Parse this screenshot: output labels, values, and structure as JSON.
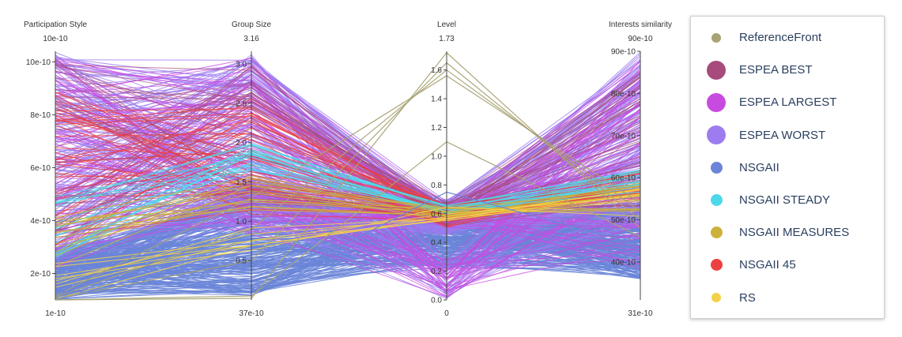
{
  "chart_data": {
    "type": "parallel-coordinates",
    "axes": [
      {
        "title": "Participation Style",
        "top_label": "10e-10",
        "bottom_label": "1e-10",
        "range": [
          1,
          10.4
        ],
        "ticks": [
          {
            "v": 2,
            "label": "2e-10"
          },
          {
            "v": 4,
            "label": "4e-10"
          },
          {
            "v": 6,
            "label": "6e-10"
          },
          {
            "v": 8,
            "label": "8e-10"
          },
          {
            "v": 10,
            "label": "10e-10"
          }
        ]
      },
      {
        "title": "Group Size",
        "top_label": "3.16",
        "bottom_label": "37e-10",
        "range": [
          0.0,
          3.16
        ],
        "ticks": [
          {
            "v": 0.5,
            "label": "0.5"
          },
          {
            "v": 1.0,
            "label": "1.0"
          },
          {
            "v": 1.5,
            "label": "1.5"
          },
          {
            "v": 2.0,
            "label": "2.0"
          },
          {
            "v": 2.5,
            "label": "2.5"
          },
          {
            "v": 3.0,
            "label": "3.0"
          }
        ]
      },
      {
        "title": "Level",
        "top_label": "1.73",
        "bottom_label": "0",
        "range": [
          0,
          1.73
        ],
        "ticks": [
          {
            "v": 0.0,
            "label": "0.0"
          },
          {
            "v": 0.2,
            "label": "0.2"
          },
          {
            "v": 0.4,
            "label": "0.4"
          },
          {
            "v": 0.6,
            "label": "0.6"
          },
          {
            "v": 0.8,
            "label": "0.8"
          },
          {
            "v": 1.0,
            "label": "1.0"
          },
          {
            "v": 1.2,
            "label": "1.2"
          },
          {
            "v": 1.4,
            "label": "1.4"
          },
          {
            "v": 1.6,
            "label": "1.6"
          }
        ]
      },
      {
        "title": "Interests similarity",
        "top_label": "90e-10",
        "bottom_label": "31e-10",
        "range": [
          31,
          90
        ],
        "ticks": [
          {
            "v": 40,
            "label": "40e-10"
          },
          {
            "v": 50,
            "label": "50e-10"
          },
          {
            "v": 60,
            "label": "60e-10"
          },
          {
            "v": 70,
            "label": "70e-10"
          },
          {
            "v": 80,
            "label": "80e-10"
          },
          {
            "v": 90,
            "label": "90e-10"
          }
        ]
      }
    ],
    "series": [
      {
        "name": "ReferenceFront",
        "color": "#a8a274",
        "dot": "small"
      },
      {
        "name": "ESPEA BEST",
        "color": "#a64b7c",
        "dot": "large"
      },
      {
        "name": "ESPEA LARGEST",
        "color": "#c84be0",
        "dot": "large"
      },
      {
        "name": "ESPEA WORST",
        "color": "#9d7cf0",
        "dot": "large"
      },
      {
        "name": "NSGAII",
        "color": "#6a85d8",
        "dot": "medium"
      },
      {
        "name": "NSGAII STEADY",
        "color": "#4dd8ea",
        "dot": "medium"
      },
      {
        "name": "NSGAII MEASURES",
        "color": "#ccb13c",
        "dot": "medium"
      },
      {
        "name": "NSGAII 45",
        "color": "#ec4040",
        "dot": "medium"
      },
      {
        "name": "RS",
        "color": "#f3d24a",
        "dot": "small"
      }
    ],
    "legend_position": "right"
  }
}
